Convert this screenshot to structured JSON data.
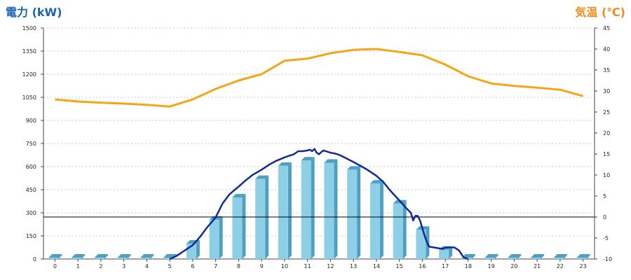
{
  "chart_data": {
    "type": "bar",
    "ylabel_left": "電力 (kW)",
    "ylabel_right": "気温 (℃)",
    "categories": [
      "0",
      "1",
      "2",
      "3",
      "4",
      "5",
      "6",
      "7",
      "8",
      "9",
      "10",
      "11",
      "12",
      "13",
      "14",
      "15",
      "16",
      "17",
      "18",
      "19",
      "20",
      "21",
      "22",
      "23"
    ],
    "ylim_left": [
      0,
      1500
    ],
    "yticks_left": [
      "0",
      "150",
      "300",
      "450",
      "600",
      "750",
      "900",
      "1050",
      "1200",
      "1350",
      "1500"
    ],
    "ylim_right": [
      -10,
      45
    ],
    "yticks_right": [
      "-10",
      "-5",
      "0",
      "5",
      "10",
      "15",
      "20",
      "25",
      "30",
      "35",
      "40",
      "45"
    ],
    "grid": true,
    "series": [
      {
        "type": "bar",
        "axis": "left",
        "values": [
          0,
          0,
          0,
          0,
          0,
          0,
          100,
          255,
          400,
          520,
          605,
          640,
          625,
          580,
          490,
          360,
          190,
          60,
          0,
          0,
          0,
          0,
          0,
          0
        ],
        "color": "#8ecfe8",
        "edge_color": "#4f9fc0"
      },
      {
        "type": "line",
        "axis": "left",
        "x": [
          5.0,
          5.3,
          5.6,
          6.0,
          6.3,
          6.6,
          7.0,
          7.3,
          7.6,
          8.0,
          8.3,
          8.6,
          9.0,
          9.3,
          9.6,
          10.0,
          10.2,
          10.4,
          10.6,
          10.8,
          11.0,
          11.1,
          11.2,
          11.3,
          11.4,
          11.5,
          11.6,
          11.7,
          11.8,
          12.0,
          12.2,
          12.4,
          12.6,
          12.8,
          13.0,
          13.3,
          13.6,
          14.0,
          14.3,
          14.6,
          15.0,
          15.3,
          15.5,
          15.6,
          15.7,
          15.8,
          15.9,
          16.0,
          16.1,
          16.2,
          16.3,
          16.5,
          16.7,
          16.9,
          17.0,
          17.2,
          17.4,
          17.6,
          17.8,
          18.0
        ],
        "values": [
          0,
          20,
          50,
          90,
          140,
          200,
          270,
          360,
          420,
          470,
          510,
          545,
          580,
          610,
          635,
          660,
          670,
          680,
          700,
          700,
          705,
          710,
          700,
          715,
          690,
          680,
          695,
          705,
          700,
          690,
          685,
          675,
          660,
          645,
          630,
          605,
          580,
          540,
          500,
          445,
          380,
          330,
          300,
          250,
          280,
          280,
          250,
          200,
          150,
          110,
          80,
          75,
          70,
          65,
          75,
          75,
          75,
          55,
          10,
          0
        ],
        "color": "#102a96"
      },
      {
        "type": "line",
        "axis": "right",
        "x": [
          0,
          1,
          2,
          3,
          4,
          5,
          6,
          7,
          8,
          9,
          10,
          11,
          12,
          13,
          14,
          15,
          16,
          17,
          18,
          19,
          20,
          21,
          22,
          23
        ],
        "values": [
          28.0,
          27.5,
          27.2,
          27.0,
          26.7,
          26.3,
          28.0,
          30.5,
          32.5,
          34.0,
          37.2,
          37.7,
          39.0,
          39.8,
          40.0,
          39.3,
          38.5,
          36.3,
          33.5,
          31.8,
          31.2,
          30.8,
          30.3,
          28.8
        ],
        "color": "#f5a516"
      }
    ],
    "reference_line": {
      "axis": "right",
      "value": 0,
      "color": "#000000"
    }
  }
}
